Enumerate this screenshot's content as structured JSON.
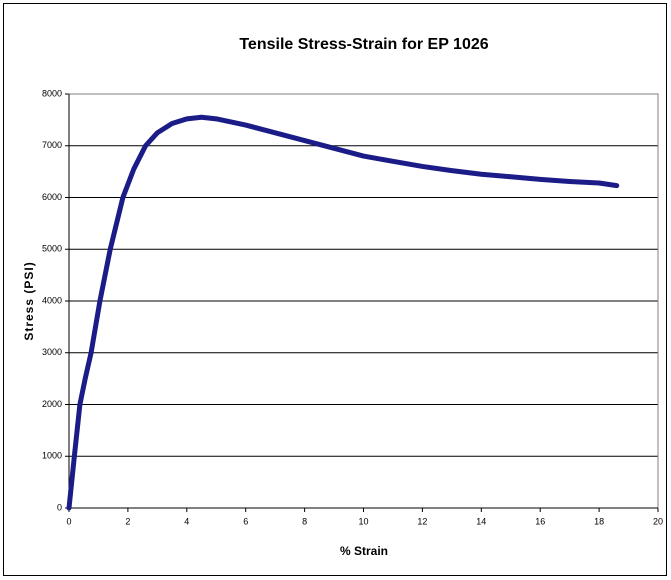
{
  "chart_data": {
    "type": "line",
    "title": "Tensile Stress-Strain for EP 1026",
    "x_label": "% Strain",
    "y_label": "Stress (PSI)",
    "x": [
      0,
      0.2,
      0.37,
      0.55,
      0.75,
      1.05,
      1.4,
      1.83,
      2.2,
      2.6,
      3.0,
      3.5,
      4.0,
      4.5,
      5.0,
      6.0,
      7.0,
      8.0,
      9.0,
      10.0,
      11.0,
      12.0,
      13.0,
      14.0,
      15.0,
      16.0,
      17.0,
      18.0,
      18.6
    ],
    "series": [
      {
        "name": "Stress",
        "color": "#1c1c88",
        "values": [
          0,
          1100,
          2000,
          2500,
          3000,
          4000,
          5000,
          6000,
          6550,
          7000,
          7250,
          7430,
          7520,
          7550,
          7520,
          7400,
          7250,
          7100,
          6950,
          6800,
          6700,
          6600,
          6520,
          6450,
          6400,
          6350,
          6310,
          6280,
          6230
        ]
      }
    ],
    "xlim": [
      0,
      20
    ],
    "xticks": [
      0,
      2,
      4,
      6,
      8,
      10,
      12,
      14,
      16,
      18,
      20
    ],
    "ylim": [
      0,
      8000
    ],
    "yticks": [
      0,
      1000,
      2000,
      3000,
      4000,
      5000,
      6000,
      7000,
      8000
    ],
    "grid": true
  }
}
